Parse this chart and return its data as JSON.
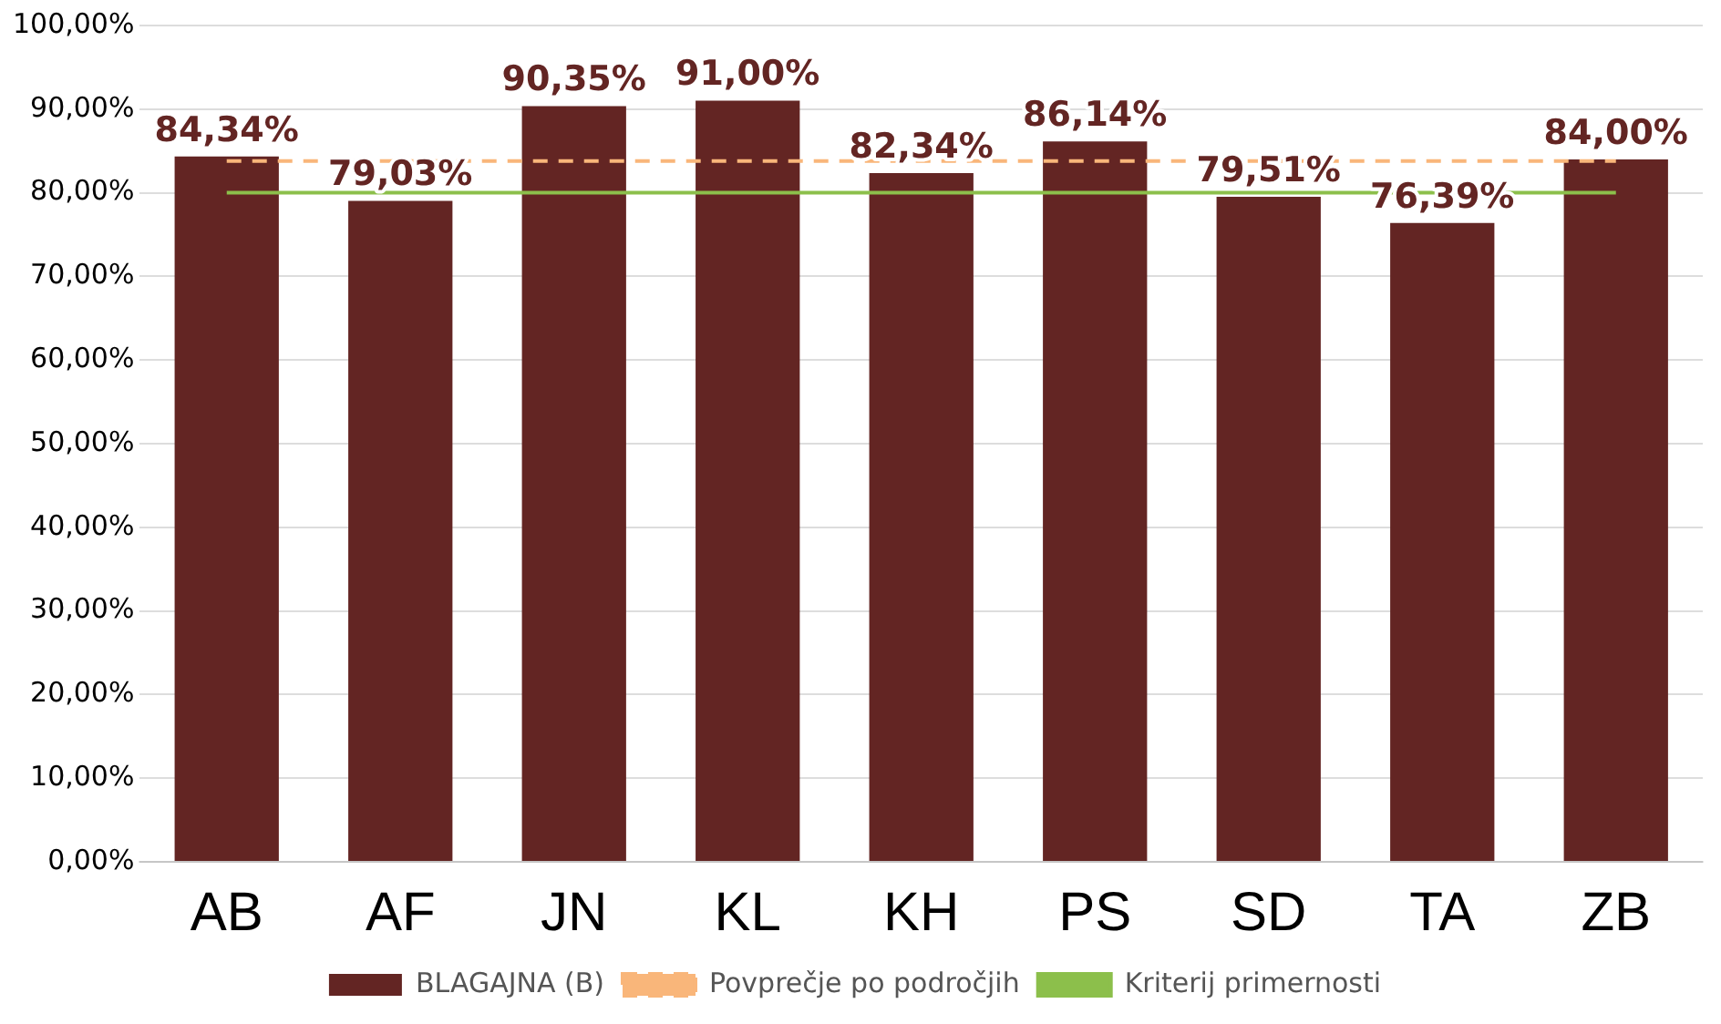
{
  "chart_data": {
    "type": "bar",
    "categories": [
      "AB",
      "AF",
      "JN",
      "KL",
      "KH",
      "PS",
      "SD",
      "TA",
      "ZB"
    ],
    "series": [
      {
        "name": "BLAGAJNA (B)",
        "color": "#632523",
        "values": [
          84.34,
          79.03,
          90.35,
          91.0,
          82.34,
          86.14,
          79.51,
          76.39,
          84.0
        ],
        "value_labels": [
          "84,34%",
          "79,03%",
          "90,35%",
          "91,00%",
          "82,34%",
          "86,14%",
          "79,51%",
          "76,39%",
          "84,00%"
        ]
      },
      {
        "name": "Povprečje po področjih",
        "type": "line",
        "color": "#f9b67a",
        "line_style": "dashed",
        "values": [
          83.8,
          83.8,
          83.8,
          83.8,
          83.8,
          83.8,
          83.8,
          83.8,
          83.8
        ]
      },
      {
        "name": "Kriterij primernosti",
        "type": "line",
        "color": "#8cbf4b",
        "line_style": "solid",
        "values": [
          80,
          80,
          80,
          80,
          80,
          80,
          80,
          80,
          80
        ]
      }
    ],
    "ylim": [
      0,
      100
    ],
    "yticks": [
      {
        "value": 0,
        "label": "0,00%"
      },
      {
        "value": 10,
        "label": "10,00%"
      },
      {
        "value": 20,
        "label": "20,00%"
      },
      {
        "value": 30,
        "label": "30,00%"
      },
      {
        "value": 40,
        "label": "40,00%"
      },
      {
        "value": 50,
        "label": "50,00%"
      },
      {
        "value": 60,
        "label": "60,00%"
      },
      {
        "value": 70,
        "label": "70,00%"
      },
      {
        "value": 80,
        "label": "80,00%"
      },
      {
        "value": 90,
        "label": "90,00%"
      },
      {
        "value": 100,
        "label": "100,00%"
      }
    ],
    "grid": "y",
    "legend": "bottom",
    "marker": "none"
  }
}
